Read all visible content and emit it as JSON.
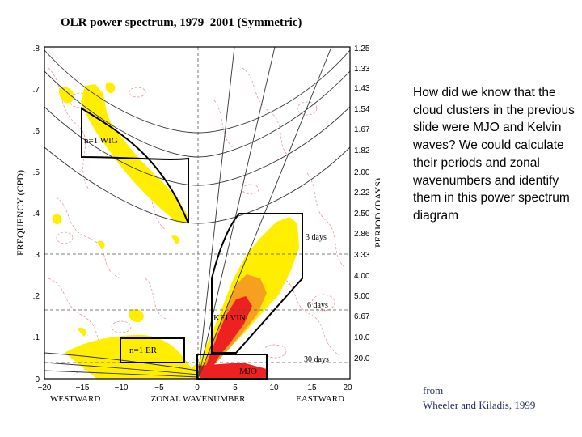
{
  "slide": {
    "title": "OLR power spectrum, 1979–2001 (Symmetric)",
    "description": "How did we know that the cloud clusters in the previous slide were MJO and Kelvin waves? We could calculate their periods and zonal wavenumbers and identify them in this power spectrum diagram",
    "credit_line1": "from",
    "credit_line2": "Wheeler and Kiladis, 1999"
  },
  "diagram": {
    "ylabel": "FREQUENCY (CPD)",
    "y2label": "PERIOD (DAYS)",
    "xlabel": "ZONAL WAVENUMBER",
    "west_label": "WESTWARD",
    "east_label": "EASTWARD",
    "freq_ticks": [
      ".8",
      ".7",
      ".6",
      ".5",
      ".4",
      ".3",
      ".2",
      ".1",
      "0"
    ],
    "period_ticks": [
      "1.25",
      "1.33",
      "1.43",
      "1.54",
      "1.67",
      "1.82",
      "2.00",
      "2.22",
      "2.50",
      "2.86",
      "3.33",
      "4.00",
      "5.00",
      "6.67",
      "10.0",
      "20.0"
    ],
    "wavenumber_ticks": [
      "−20",
      "−15",
      "−10",
      "−5",
      "0",
      "5",
      "10",
      "15",
      "20"
    ],
    "labels": {
      "wig": "n=1 WIG",
      "kelvin": "KELVIN",
      "er": "n=1 ER",
      "mjo": "MJO",
      "three_days": "3 days",
      "six_days": "6 days",
      "thirty_days": "30 days"
    },
    "colors": {
      "yellow": "#ffee00",
      "orange": "#f7a020",
      "red": "#ee2020",
      "contour": "#e08080",
      "box": "#000000"
    }
  }
}
